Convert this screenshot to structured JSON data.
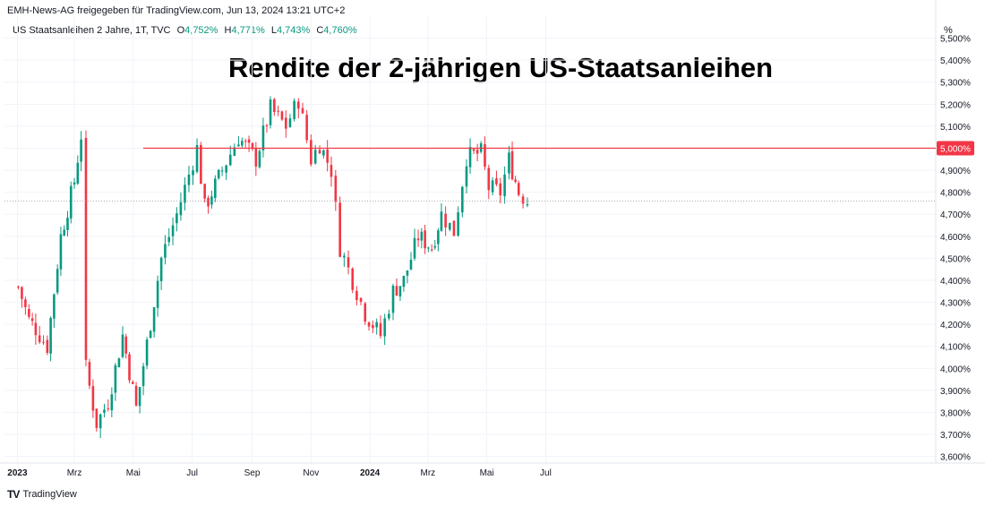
{
  "header": {
    "text": "EMH-News-AG freigegeben für TradingView.com, Jun 13, 2024 13:21 UTC+2"
  },
  "legend": {
    "symbol": "US Staatsanleihen 2 Jahre, 1T, TVC",
    "o_label": "O",
    "o_value": "4,752%",
    "h_label": "H",
    "h_value": "4,771%",
    "l_label": "L",
    "l_value": "4,743%",
    "c_label": "C",
    "c_value": "4,760%"
  },
  "title": "Rendite der 2-jährigen US-Staatsanleihen",
  "y_unit": "%",
  "brand": {
    "name": "TradingView",
    "logo": "TV"
  },
  "colors": {
    "up": "#089981",
    "down": "#f23645",
    "level": "#f23645",
    "grid": "#f0f3fa",
    "text": "#131722"
  },
  "chart_data": {
    "type": "candlestick",
    "title": "Rendite der 2-jährigen US-Staatsanleihen",
    "x_tick_labels": [
      "2023",
      "Mrz",
      "Mai",
      "Jul",
      "Sep",
      "Nov",
      "2024",
      "Mrz",
      "Mai",
      "Jul"
    ],
    "y_tick_labels": [
      "3,600%",
      "3,700%",
      "3,800%",
      "3,900%",
      "4,000%",
      "4,100%",
      "4,200%",
      "4,300%",
      "4,400%",
      "4,500%",
      "4,600%",
      "4,700%",
      "4,800%",
      "4,900%",
      "5,000%",
      "5,100%",
      "5,200%",
      "5,300%",
      "5,400%",
      "5,500%"
    ],
    "y_ticks": [
      3.6,
      3.7,
      3.8,
      3.9,
      4.0,
      4.1,
      4.2,
      4.3,
      4.4,
      4.5,
      4.6,
      4.7,
      4.8,
      4.9,
      5.0,
      5.1,
      5.2,
      5.3,
      5.4,
      5.5
    ],
    "ylim": [
      3.57,
      5.6
    ],
    "horizontal_line": {
      "value": 5.0,
      "label": "5,000%"
    },
    "last_close": 4.76,
    "grid": true,
    "approx_close_series": [
      {
        "date": "2023-01-02",
        "close": 4.37
      },
      {
        "date": "2023-01-13",
        "close": 4.22
      },
      {
        "date": "2023-01-20",
        "close": 4.18
      },
      {
        "date": "2023-02-01",
        "close": 4.1
      },
      {
        "date": "2023-02-15",
        "close": 4.6
      },
      {
        "date": "2023-03-01",
        "close": 4.85
      },
      {
        "date": "2023-03-08",
        "close": 5.06
      },
      {
        "date": "2023-03-13",
        "close": 4.0
      },
      {
        "date": "2023-03-24",
        "close": 3.75
      },
      {
        "date": "2023-04-05",
        "close": 3.85
      },
      {
        "date": "2023-04-20",
        "close": 4.15
      },
      {
        "date": "2023-05-04",
        "close": 3.82
      },
      {
        "date": "2023-05-30",
        "close": 4.5
      },
      {
        "date": "2023-06-15",
        "close": 4.7
      },
      {
        "date": "2023-07-06",
        "close": 5.0
      },
      {
        "date": "2023-07-14",
        "close": 4.73
      },
      {
        "date": "2023-08-01",
        "close": 4.9
      },
      {
        "date": "2023-08-18",
        "close": 5.05
      },
      {
        "date": "2023-09-05",
        "close": 4.95
      },
      {
        "date": "2023-09-20",
        "close": 5.18
      },
      {
        "date": "2023-10-06",
        "close": 5.1
      },
      {
        "date": "2023-10-19",
        "close": 5.22
      },
      {
        "date": "2023-11-01",
        "close": 4.95
      },
      {
        "date": "2023-11-10",
        "close": 5.02
      },
      {
        "date": "2023-11-22",
        "close": 4.9
      },
      {
        "date": "2023-12-01",
        "close": 4.55
      },
      {
        "date": "2023-12-14",
        "close": 4.4
      },
      {
        "date": "2023-12-27",
        "close": 4.25
      },
      {
        "date": "2024-01-12",
        "close": 4.15
      },
      {
        "date": "2024-01-25",
        "close": 4.35
      },
      {
        "date": "2024-02-05",
        "close": 4.4
      },
      {
        "date": "2024-02-20",
        "close": 4.6
      },
      {
        "date": "2024-03-05",
        "close": 4.55
      },
      {
        "date": "2024-03-15",
        "close": 4.7
      },
      {
        "date": "2024-03-28",
        "close": 4.62
      },
      {
        "date": "2024-04-10",
        "close": 4.96
      },
      {
        "date": "2024-04-25",
        "close": 4.98
      },
      {
        "date": "2024-05-03",
        "close": 4.82
      },
      {
        "date": "2024-05-15",
        "close": 4.8
      },
      {
        "date": "2024-05-24",
        "close": 4.95
      },
      {
        "date": "2024-06-03",
        "close": 4.8
      },
      {
        "date": "2024-06-12",
        "close": 4.76
      }
    ]
  }
}
